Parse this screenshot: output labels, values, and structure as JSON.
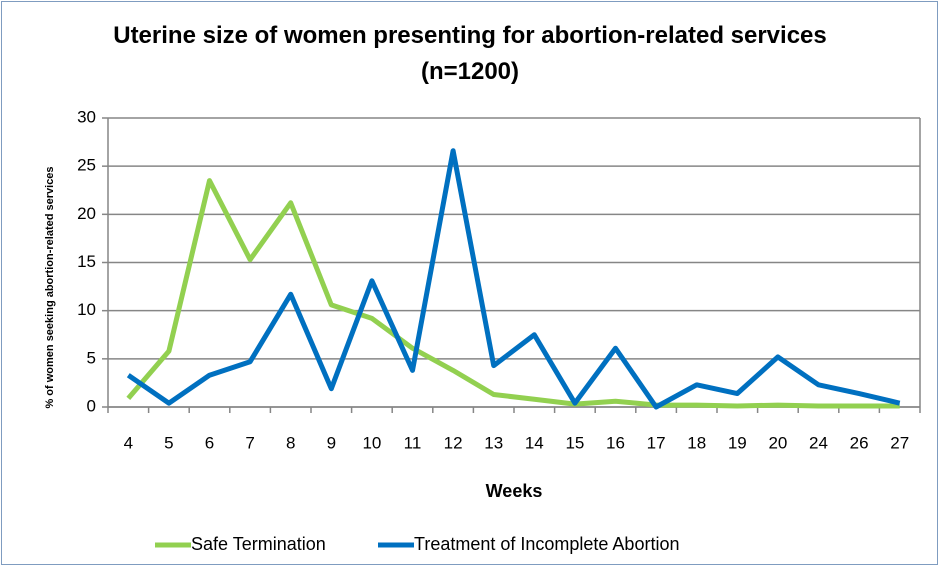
{
  "chart_data": {
    "type": "line",
    "title": "Uterine size of women presenting for abortion-related services (n=1200)",
    "x_label": "Weeks",
    "y_label": "% of women seeking abortion-related services",
    "categories": [
      "4",
      "5",
      "6",
      "7",
      "8",
      "9",
      "10",
      "11",
      "12",
      "13",
      "14",
      "15",
      "16",
      "17",
      "18",
      "19",
      "20",
      "24",
      "26",
      "27"
    ],
    "series": [
      {
        "name": "Safe Termination",
        "color": "#92d050",
        "values": [
          0.9,
          5.8,
          23.5,
          15.3,
          21.2,
          10.6,
          9.2,
          6.1,
          3.8,
          1.3,
          0.8,
          0.3,
          0.6,
          0.2,
          0.2,
          0.1,
          0.2,
          0.1,
          0.1,
          0.1
        ]
      },
      {
        "name": "Treatment of Incomplete Abortion",
        "color": "#0070c0",
        "values": [
          3.3,
          0.4,
          3.3,
          4.7,
          11.7,
          1.9,
          13.1,
          3.8,
          26.6,
          4.3,
          7.5,
          0.4,
          6.1,
          0.0,
          2.3,
          1.4,
          5.2,
          2.3,
          1.4,
          0.4
        ]
      }
    ],
    "ylim": [
      0,
      30
    ],
    "yticks": [
      0,
      5,
      10,
      15,
      20,
      25,
      30
    ],
    "grid": true,
    "legend": "bottom"
  }
}
